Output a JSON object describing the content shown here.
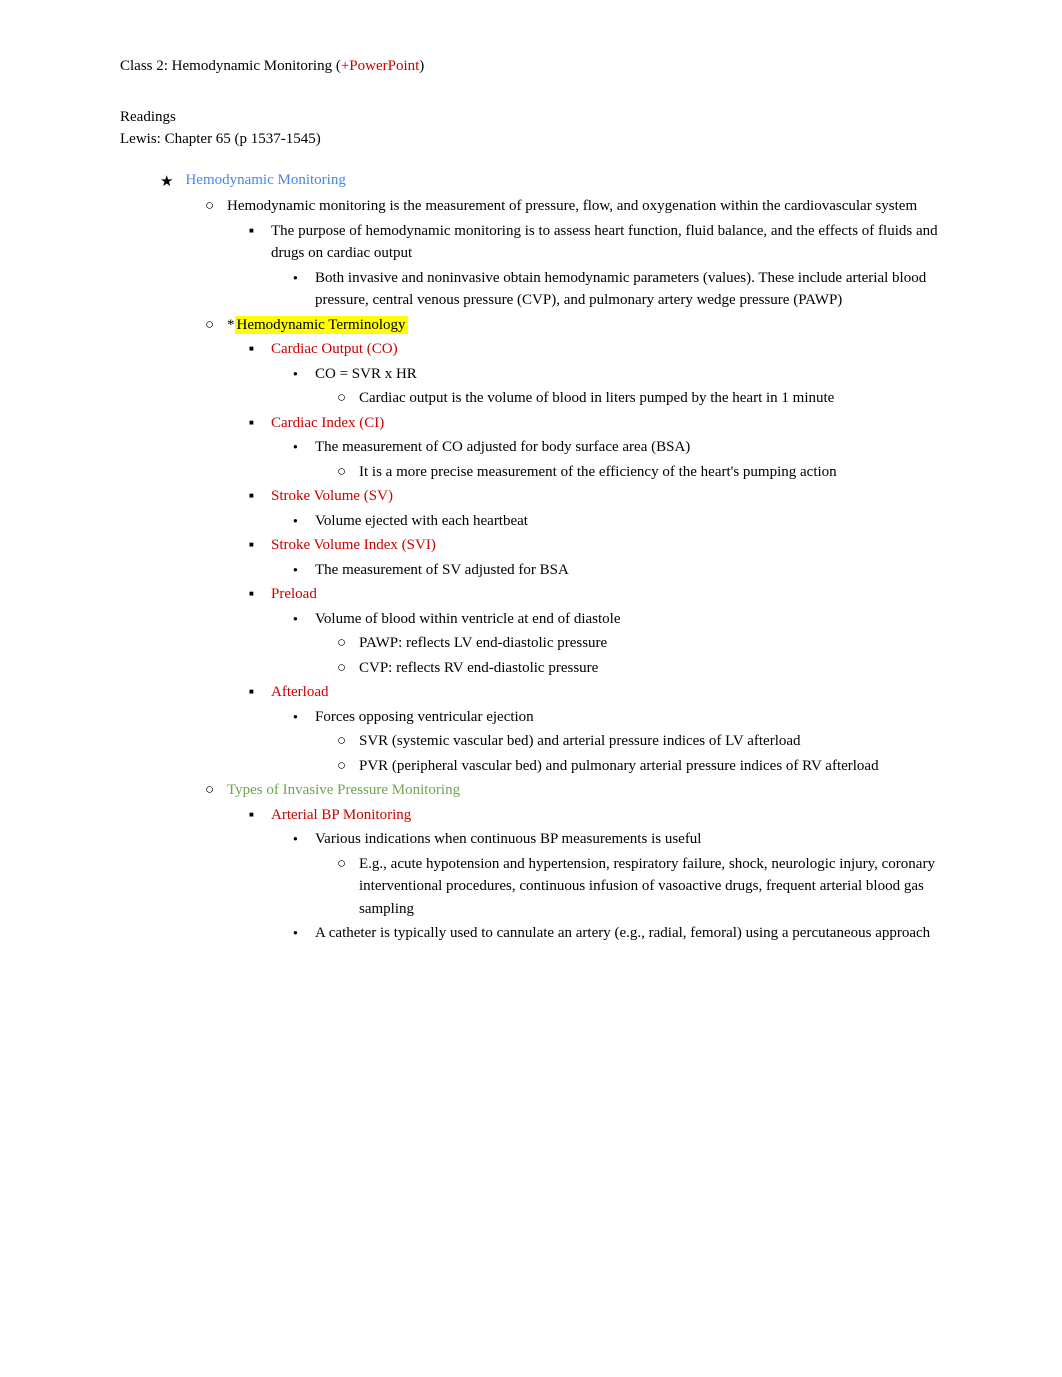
{
  "title": {
    "main": "Class 2: Hemodynamic Monitoring (",
    "red": "+PowerPoint",
    "close": ")"
  },
  "readings": {
    "label": "Readings",
    "text": "Lewis: Chapter 65 (p 1537-1545)"
  },
  "starHeading": "Hemodynamic Monitoring",
  "hemoMonitoring": {
    "p1a": "Hemodynamic monitoring",
    "p1b": " is the measurement of pressure, flow, and oxygenation within the cardiovascular system",
    "purpose": "The purpose of hemodynamic monitoring is to assess heart function, fluid balance, and the effects of fluids and drugs on cardiac output",
    "both1": "Both invasive and noninvasive obtain hemodynamic parameters (values). These include ",
    "both2": "arterial blood pressure",
    "both3": ", ",
    "both4": "central venous pressure (CVP)",
    "both5": ", and ",
    "both6": "pulmonary artery wedge pressure (PAWP)"
  },
  "terminology": {
    "star": "*",
    "heading": "Hemodynamic Terminology",
    "co": {
      "label": "Cardiac Output (CO)",
      "formula": "CO = SVR x HR",
      "def": "Cardiac output is the volume of blood in liters pumped by the heart in 1 minute"
    },
    "ci": {
      "label": "Cardiac Index (CI)",
      "def": "The measurement of CO adjusted for body surface area (BSA)",
      "sub": "It is a more precise measurement of the efficiency of the heart's pumping action"
    },
    "sv": {
      "label": "Stroke Volume (SV)",
      "def": "Volume ejected with each heartbeat"
    },
    "svi": {
      "label": "Stroke Volume Index (SVI)",
      "def": "The measurement of SV adjusted for BSA"
    },
    "preload": {
      "label": "Preload",
      "def": "Volume of blood within ventricle at end of diastole",
      "s1": "PAWP: reflects LV end-diastolic pressure",
      "s2": "CVP: reflects RV end-diastolic pressure"
    },
    "afterload": {
      "label": "Afterload",
      "def": "Forces opposing ventricular ejection",
      "s1": "SVR (systemic vascular bed) and arterial pressure indices of LV afterload",
      "s2": "PVR (peripheral vascular bed) and pulmonary arterial pressure indices of RV afterload"
    }
  },
  "invasive": {
    "heading": "Types of Invasive Pressure Monitoring",
    "arterial": {
      "label": "Arterial BP Monitoring",
      "p1": "Various indications when continuous BP measurements is useful",
      "p2": "E.g., acute hypotension and hypertension, respiratory failure, shock, neurologic injury, coronary interventional procedures, continuous infusion of vasoactive drugs, frequent arterial blood gas sampling",
      "p3": "A catheter is typically used to cannulate an artery (e.g., radial, femoral) using a percutaneous approach"
    }
  },
  "colors": {
    "red": "#cc0000",
    "blue": "#4a86e8",
    "green": "#6aa84f",
    "highlight": "#ffff00",
    "text": "#000000",
    "background": "#ffffff"
  }
}
